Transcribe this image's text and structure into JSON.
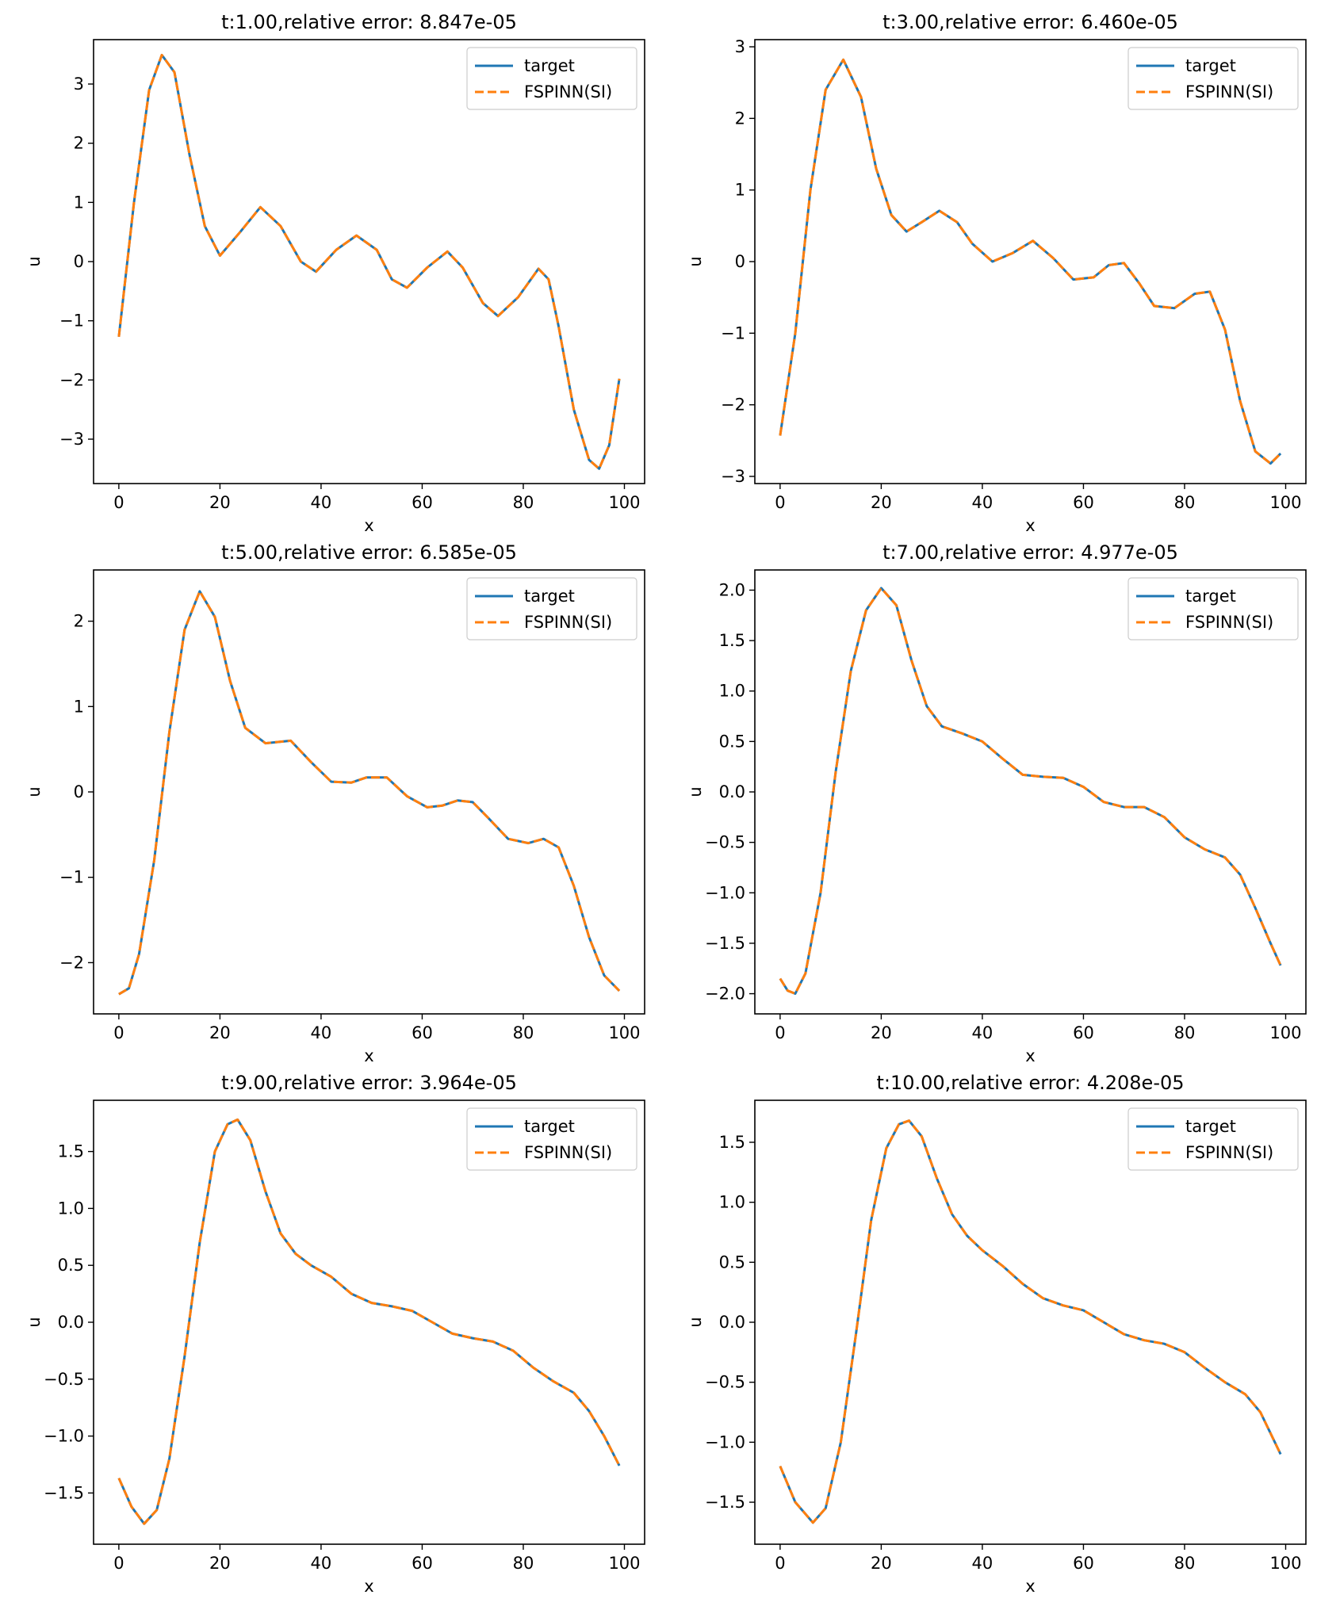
{
  "figure": {
    "colors": {
      "target": "#1f77b4",
      "prediction": "#ff7f0e",
      "axis": "#000000",
      "legend_border": "#cccccc"
    },
    "xlabel": "x",
    "ylabel": "u",
    "legend": {
      "location": "top-right",
      "entries": [
        "target",
        "FSPINN(SI)"
      ]
    }
  },
  "chart_data": [
    {
      "type": "line",
      "panel": "t1",
      "title": "t:1.00,relative error: 8.847e-05",
      "xlabel": "x",
      "ylabel": "u",
      "xlim": [
        -5,
        104
      ],
      "ylim": [
        -3.75,
        3.75
      ],
      "xticks": [
        0,
        20,
        40,
        60,
        80,
        100
      ],
      "xtick_labels": [
        "0",
        "20",
        "40",
        "60",
        "80",
        "100"
      ],
      "yticks": [
        -3,
        -2,
        -1,
        0,
        1,
        2,
        3
      ],
      "ytick_labels": [
        "−3",
        "−2",
        "−1",
        "0",
        "1",
        "2",
        "3"
      ],
      "series": [
        {
          "name": "target",
          "style": "solid",
          "x": [
            0,
            3,
            6,
            8.5,
            11,
            14,
            17,
            20,
            24,
            28,
            32,
            36,
            39,
            43,
            47,
            51,
            54,
            57,
            61,
            65,
            68,
            72,
            75,
            79,
            83,
            85,
            87,
            90,
            93,
            95,
            97,
            99
          ],
          "y": [
            -1.27,
            1.0,
            2.9,
            3.49,
            3.2,
            1.8,
            0.6,
            0.1,
            0.5,
            0.92,
            0.6,
            0.0,
            -0.17,
            0.2,
            0.44,
            0.2,
            -0.3,
            -0.44,
            -0.1,
            0.17,
            -0.1,
            -0.7,
            -0.92,
            -0.6,
            -0.12,
            -0.3,
            -1.1,
            -2.5,
            -3.35,
            -3.5,
            -3.1,
            -1.98
          ]
        },
        {
          "name": "FSPINN(SI)",
          "style": "dashed",
          "x": [
            0,
            3,
            6,
            8.5,
            11,
            14,
            17,
            20,
            24,
            28,
            32,
            36,
            39,
            43,
            47,
            51,
            54,
            57,
            61,
            65,
            68,
            72,
            75,
            79,
            83,
            85,
            87,
            90,
            93,
            95,
            97,
            99
          ],
          "y": [
            -1.27,
            1.0,
            2.9,
            3.49,
            3.2,
            1.8,
            0.6,
            0.1,
            0.5,
            0.92,
            0.6,
            0.0,
            -0.17,
            0.2,
            0.44,
            0.2,
            -0.3,
            -0.44,
            -0.1,
            0.17,
            -0.1,
            -0.7,
            -0.92,
            -0.6,
            -0.12,
            -0.3,
            -1.1,
            -2.5,
            -3.35,
            -3.5,
            -3.1,
            -1.98
          ]
        }
      ]
    },
    {
      "type": "line",
      "panel": "t3",
      "title": "t:3.00,relative error: 6.460e-05",
      "xlabel": "x",
      "ylabel": "u",
      "xlim": [
        -5,
        104
      ],
      "ylim": [
        -3.1,
        3.1
      ],
      "xticks": [
        0,
        20,
        40,
        60,
        80,
        100
      ],
      "xtick_labels": [
        "0",
        "20",
        "40",
        "60",
        "80",
        "100"
      ],
      "yticks": [
        -3,
        -2,
        -1,
        0,
        1,
        2,
        3
      ],
      "ytick_labels": [
        "−3",
        "−2",
        "−1",
        "0",
        "1",
        "2",
        "3"
      ],
      "series": [
        {
          "name": "target",
          "style": "solid",
          "x": [
            0,
            3,
            6,
            9,
            12.5,
            16,
            19,
            22,
            25,
            28,
            31.5,
            35,
            38,
            42,
            46,
            50,
            54,
            58,
            62,
            65,
            68,
            71,
            74,
            78,
            82,
            85,
            88,
            91,
            94,
            97,
            99
          ],
          "y": [
            -2.43,
            -1.0,
            1.0,
            2.4,
            2.82,
            2.3,
            1.3,
            0.65,
            0.42,
            0.55,
            0.71,
            0.55,
            0.25,
            0.0,
            0.12,
            0.29,
            0.05,
            -0.25,
            -0.22,
            -0.05,
            -0.02,
            -0.3,
            -0.62,
            -0.65,
            -0.45,
            -0.42,
            -0.95,
            -1.95,
            -2.65,
            -2.82,
            -2.68
          ]
        },
        {
          "name": "FSPINN(SI)",
          "style": "dashed",
          "x": [
            0,
            3,
            6,
            9,
            12.5,
            16,
            19,
            22,
            25,
            28,
            31.5,
            35,
            38,
            42,
            46,
            50,
            54,
            58,
            62,
            65,
            68,
            71,
            74,
            78,
            82,
            85,
            88,
            91,
            94,
            97,
            99
          ],
          "y": [
            -2.43,
            -1.0,
            1.0,
            2.4,
            2.82,
            2.3,
            1.3,
            0.65,
            0.42,
            0.55,
            0.71,
            0.55,
            0.25,
            0.0,
            0.12,
            0.29,
            0.05,
            -0.25,
            -0.22,
            -0.05,
            -0.02,
            -0.3,
            -0.62,
            -0.65,
            -0.45,
            -0.42,
            -0.95,
            -1.95,
            -2.65,
            -2.82,
            -2.68
          ]
        }
      ]
    },
    {
      "type": "line",
      "panel": "t5",
      "title": "t:5.00,relative error: 6.585e-05",
      "xlabel": "x",
      "ylabel": "u",
      "xlim": [
        -5,
        104
      ],
      "ylim": [
        -2.6,
        2.6
      ],
      "xticks": [
        0,
        20,
        40,
        60,
        80,
        100
      ],
      "xtick_labels": [
        "0",
        "20",
        "40",
        "60",
        "80",
        "100"
      ],
      "yticks": [
        -2,
        -1,
        0,
        1,
        2
      ],
      "ytick_labels": [
        "−2",
        "−1",
        "0",
        "1",
        "2"
      ],
      "series": [
        {
          "name": "target",
          "style": "solid",
          "x": [
            0,
            2,
            4,
            7,
            10,
            13,
            16,
            19,
            22,
            25,
            29,
            34,
            38,
            42,
            46,
            49,
            53,
            57,
            61,
            64,
            67,
            70,
            73,
            77,
            81,
            84,
            87,
            90,
            93,
            96,
            99
          ],
          "y": [
            -2.37,
            -2.3,
            -1.9,
            -0.8,
            0.7,
            1.9,
            2.35,
            2.05,
            1.3,
            0.75,
            0.57,
            0.6,
            0.35,
            0.12,
            0.11,
            0.17,
            0.17,
            -0.05,
            -0.18,
            -0.16,
            -0.1,
            -0.12,
            -0.3,
            -0.55,
            -0.6,
            -0.55,
            -0.65,
            -1.1,
            -1.7,
            -2.15,
            -2.33
          ]
        },
        {
          "name": "FSPINN(SI)",
          "style": "dashed",
          "x": [
            0,
            2,
            4,
            7,
            10,
            13,
            16,
            19,
            22,
            25,
            29,
            34,
            38,
            42,
            46,
            49,
            53,
            57,
            61,
            64,
            67,
            70,
            73,
            77,
            81,
            84,
            87,
            90,
            93,
            96,
            99
          ],
          "y": [
            -2.37,
            -2.3,
            -1.9,
            -0.8,
            0.7,
            1.9,
            2.35,
            2.05,
            1.3,
            0.75,
            0.57,
            0.6,
            0.35,
            0.12,
            0.11,
            0.17,
            0.17,
            -0.05,
            -0.18,
            -0.16,
            -0.1,
            -0.12,
            -0.3,
            -0.55,
            -0.6,
            -0.55,
            -0.65,
            -1.1,
            -1.7,
            -2.15,
            -2.33
          ]
        }
      ]
    },
    {
      "type": "line",
      "panel": "t7",
      "title": "t:7.00,relative error: 4.977e-05",
      "xlabel": "x",
      "ylabel": "u",
      "xlim": [
        -5,
        104
      ],
      "ylim": [
        -2.2,
        2.2
      ],
      "xticks": [
        0,
        20,
        40,
        60,
        80,
        100
      ],
      "xtick_labels": [
        "0",
        "20",
        "40",
        "60",
        "80",
        "100"
      ],
      "yticks": [
        -2.0,
        -1.5,
        -1.0,
        -0.5,
        0.0,
        0.5,
        1.0,
        1.5,
        2.0
      ],
      "ytick_labels": [
        "−2.0",
        "−1.5",
        "−1.0",
        "−0.5",
        "0.0",
        "0.5",
        "1.0",
        "1.5",
        "2.0"
      ],
      "series": [
        {
          "name": "target",
          "style": "solid",
          "x": [
            0,
            1.5,
            3,
            5,
            8,
            11,
            14,
            17,
            20,
            23,
            26,
            29,
            32,
            36,
            40,
            44,
            48,
            52,
            56,
            60,
            64,
            68,
            72,
            76,
            80,
            84,
            88,
            91,
            94,
            97,
            99
          ],
          "y": [
            -1.85,
            -1.97,
            -2.0,
            -1.8,
            -1.0,
            0.2,
            1.2,
            1.8,
            2.02,
            1.85,
            1.3,
            0.85,
            0.65,
            0.58,
            0.5,
            0.33,
            0.17,
            0.15,
            0.14,
            0.05,
            -0.1,
            -0.15,
            -0.15,
            -0.25,
            -0.45,
            -0.57,
            -0.65,
            -0.82,
            -1.15,
            -1.5,
            -1.72
          ]
        },
        {
          "name": "FSPINN(SI)",
          "style": "dashed",
          "x": [
            0,
            1.5,
            3,
            5,
            8,
            11,
            14,
            17,
            20,
            23,
            26,
            29,
            32,
            36,
            40,
            44,
            48,
            52,
            56,
            60,
            64,
            68,
            72,
            76,
            80,
            84,
            88,
            91,
            94,
            97,
            99
          ],
          "y": [
            -1.85,
            -1.97,
            -2.0,
            -1.8,
            -1.0,
            0.2,
            1.2,
            1.8,
            2.02,
            1.85,
            1.3,
            0.85,
            0.65,
            0.58,
            0.5,
            0.33,
            0.17,
            0.15,
            0.14,
            0.05,
            -0.1,
            -0.15,
            -0.15,
            -0.25,
            -0.45,
            -0.57,
            -0.65,
            -0.82,
            -1.15,
            -1.5,
            -1.72
          ]
        }
      ]
    },
    {
      "type": "line",
      "panel": "t9",
      "title": "t:9.00,relative error: 3.964e-05",
      "xlabel": "x",
      "ylabel": "u",
      "xlim": [
        -5,
        104
      ],
      "ylim": [
        -1.95,
        1.95
      ],
      "xticks": [
        0,
        20,
        40,
        60,
        80,
        100
      ],
      "xtick_labels": [
        "0",
        "20",
        "40",
        "60",
        "80",
        "100"
      ],
      "yticks": [
        -1.5,
        -1.0,
        -0.5,
        0.0,
        0.5,
        1.0,
        1.5
      ],
      "ytick_labels": [
        "−1.5",
        "−1.0",
        "−0.5",
        "0.0",
        "0.5",
        "1.0",
        "1.5"
      ],
      "series": [
        {
          "name": "target",
          "style": "solid",
          "x": [
            0,
            2.5,
            5,
            7.5,
            10,
            13,
            16,
            19,
            21.5,
            23.5,
            26,
            29,
            32,
            35,
            38,
            42,
            46,
            50,
            54,
            58,
            62,
            66,
            70,
            74,
            78,
            82,
            86,
            90,
            93,
            96,
            99
          ],
          "y": [
            -1.37,
            -1.62,
            -1.77,
            -1.65,
            -1.2,
            -0.3,
            0.7,
            1.5,
            1.74,
            1.78,
            1.6,
            1.15,
            0.78,
            0.6,
            0.5,
            0.4,
            0.25,
            0.17,
            0.14,
            0.1,
            0.0,
            -0.1,
            -0.14,
            -0.17,
            -0.25,
            -0.4,
            -0.52,
            -0.62,
            -0.78,
            -1.0,
            -1.26
          ]
        },
        {
          "name": "FSPINN(SI)",
          "style": "dashed",
          "x": [
            0,
            2.5,
            5,
            7.5,
            10,
            13,
            16,
            19,
            21.5,
            23.5,
            26,
            29,
            32,
            35,
            38,
            42,
            46,
            50,
            54,
            58,
            62,
            66,
            70,
            74,
            78,
            82,
            86,
            90,
            93,
            96,
            99
          ],
          "y": [
            -1.37,
            -1.62,
            -1.77,
            -1.65,
            -1.2,
            -0.3,
            0.7,
            1.5,
            1.74,
            1.78,
            1.6,
            1.15,
            0.78,
            0.6,
            0.5,
            0.4,
            0.25,
            0.17,
            0.14,
            0.1,
            0.0,
            -0.1,
            -0.14,
            -0.17,
            -0.25,
            -0.4,
            -0.52,
            -0.62,
            -0.78,
            -1.0,
            -1.26
          ]
        }
      ]
    },
    {
      "type": "line",
      "panel": "t10",
      "title": "t:10.00,relative error: 4.208e-05",
      "xlabel": "x",
      "ylabel": "u",
      "xlim": [
        -5,
        104
      ],
      "ylim": [
        -1.85,
        1.85
      ],
      "xticks": [
        0,
        20,
        40,
        60,
        80,
        100
      ],
      "xtick_labels": [
        "0",
        "20",
        "40",
        "60",
        "80",
        "100"
      ],
      "yticks": [
        -1.5,
        -1.0,
        -0.5,
        0.0,
        0.5,
        1.0,
        1.5
      ],
      "ytick_labels": [
        "−1.5",
        "−1.0",
        "−0.5",
        "0.0",
        "0.5",
        "1.0",
        "1.5"
      ],
      "series": [
        {
          "name": "target",
          "style": "solid",
          "x": [
            0,
            3,
            6.5,
            9,
            12,
            15,
            18,
            21,
            23.5,
            25.5,
            28,
            31,
            34,
            37,
            40,
            44,
            48,
            52,
            56,
            60,
            64,
            68,
            72,
            76,
            80,
            84,
            88,
            92,
            95,
            99
          ],
          "y": [
            -1.2,
            -1.5,
            -1.67,
            -1.55,
            -1.0,
            -0.1,
            0.85,
            1.45,
            1.65,
            1.68,
            1.55,
            1.2,
            0.9,
            0.72,
            0.6,
            0.47,
            0.32,
            0.2,
            0.14,
            0.1,
            0.0,
            -0.1,
            -0.15,
            -0.18,
            -0.25,
            -0.38,
            -0.5,
            -0.6,
            -0.75,
            -1.1
          ]
        },
        {
          "name": "FSPINN(SI)",
          "style": "dashed",
          "x": [
            0,
            3,
            6.5,
            9,
            12,
            15,
            18,
            21,
            23.5,
            25.5,
            28,
            31,
            34,
            37,
            40,
            44,
            48,
            52,
            56,
            60,
            64,
            68,
            72,
            76,
            80,
            84,
            88,
            92,
            95,
            99
          ],
          "y": [
            -1.2,
            -1.5,
            -1.67,
            -1.55,
            -1.0,
            -0.1,
            0.85,
            1.45,
            1.65,
            1.68,
            1.55,
            1.2,
            0.9,
            0.72,
            0.6,
            0.47,
            0.32,
            0.2,
            0.14,
            0.1,
            0.0,
            -0.1,
            -0.15,
            -0.18,
            -0.25,
            -0.38,
            -0.5,
            -0.6,
            -0.75,
            -1.1
          ]
        }
      ]
    }
  ]
}
